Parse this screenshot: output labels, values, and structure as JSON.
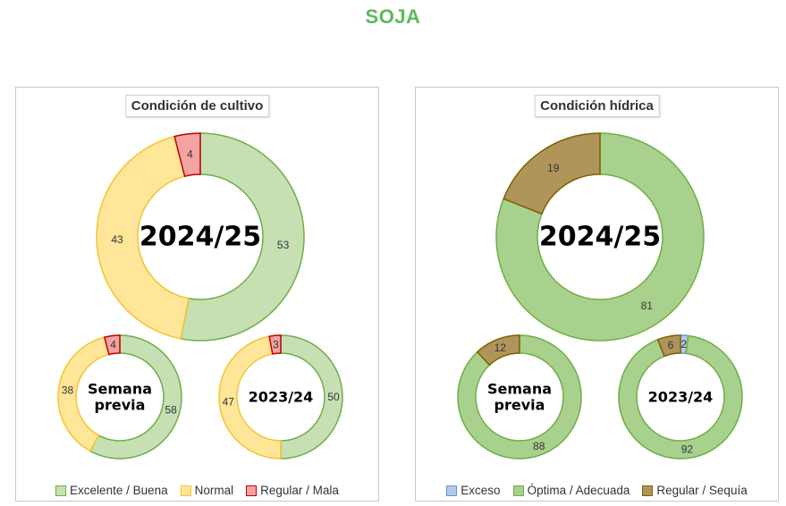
{
  "title": "SOJA",
  "colors": {
    "excelente": {
      "fill": "#c6e0b4",
      "stroke": "#70ad47"
    },
    "normal": {
      "fill": "#ffe699",
      "stroke": "#f4c430"
    },
    "regular_mala": {
      "fill": "#f4a3a3",
      "stroke": "#c00000"
    },
    "exceso": {
      "fill": "#b4c7e7",
      "stroke": "#5b9bd5"
    },
    "optima": {
      "fill": "#a9d18e",
      "stroke": "#70ad47"
    },
    "sequia": {
      "fill": "#b0955a",
      "stroke": "#7f6000"
    }
  },
  "chart_data": [
    {
      "type": "donut",
      "panel": "crop",
      "title": "Condición de cultivo",
      "legend": [
        "Excelente / Buena",
        "Normal",
        "Regular / Mala"
      ],
      "series_keys": [
        "excelente",
        "normal",
        "regular_mala"
      ],
      "donuts": [
        {
          "label": "2024/25",
          "values": [
            53,
            43,
            4
          ]
        },
        {
          "label": "Semana previa",
          "label_lines": [
            "Semana",
            "previa"
          ],
          "values": [
            58,
            38,
            4
          ]
        },
        {
          "label": "2023/24",
          "values": [
            50,
            47,
            3
          ]
        }
      ]
    },
    {
      "type": "donut",
      "panel": "water",
      "title": "Condición hídrica",
      "legend": [
        "Exceso",
        "Óptima / Adecuada",
        "Regular / Sequía"
      ],
      "series_keys": [
        "exceso",
        "optima",
        "sequia"
      ],
      "donuts": [
        {
          "label": "2024/25",
          "values": [
            0,
            81,
            19
          ]
        },
        {
          "label": "Semana previa",
          "label_lines": [
            "Semana",
            "previa"
          ],
          "values": [
            0,
            88,
            12
          ]
        },
        {
          "label": "2023/24",
          "values": [
            2,
            92,
            6
          ]
        }
      ]
    }
  ]
}
